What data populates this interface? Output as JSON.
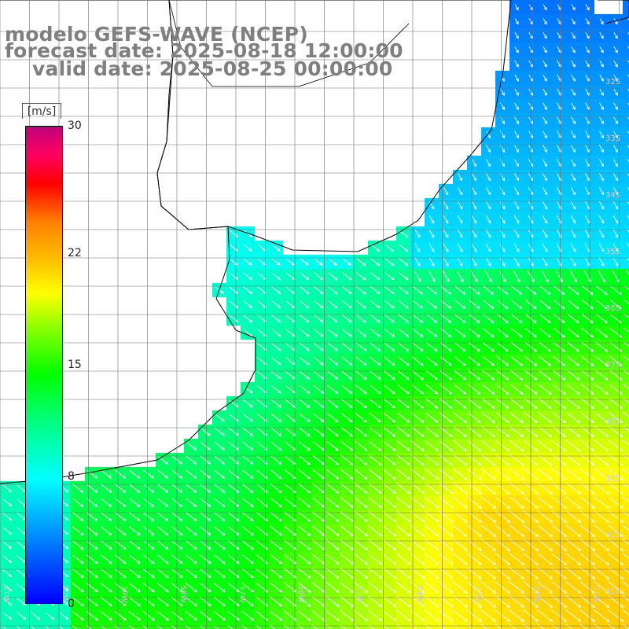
{
  "title": {
    "line1": "modelo GEFS-WAVE (NCEP)",
    "line2": "forecast date: 2025-08-18 12:00:00",
    "line3": "valid date: 2025-08-25 00:00:00"
  },
  "colorbar": {
    "unit": "[m/s]",
    "ticks": [
      {
        "value": 30,
        "label": "30"
      },
      {
        "value": 22,
        "label": "22"
      },
      {
        "value": 15,
        "label": "15"
      },
      {
        "value": 8,
        "label": "8"
      },
      {
        "value": 0,
        "label": "0"
      }
    ],
    "range": [
      0,
      30
    ]
  },
  "lat_labels": [
    {
      "value": -32,
      "label": "32S"
    },
    {
      "value": -33,
      "label": "33S"
    },
    {
      "value": -34,
      "label": "34S"
    },
    {
      "value": -35,
      "label": "35S"
    },
    {
      "value": -36,
      "label": "36S"
    },
    {
      "value": -37,
      "label": "37S"
    },
    {
      "value": -38,
      "label": "38S"
    },
    {
      "value": -39,
      "label": "39S"
    },
    {
      "value": -40,
      "label": "40S"
    },
    {
      "value": -41,
      "label": "41S"
    }
  ],
  "lon_labels": [
    {
      "value": -61,
      "label": "61W"
    },
    {
      "value": -60,
      "label": "60W"
    },
    {
      "value": -59,
      "label": "59W"
    },
    {
      "value": -58,
      "label": "58W"
    },
    {
      "value": -57,
      "label": "57W"
    },
    {
      "value": -56,
      "label": "56W"
    },
    {
      "value": -55,
      "label": "55W"
    },
    {
      "value": -54,
      "label": "54W"
    },
    {
      "value": -53,
      "label": "53W"
    },
    {
      "value": -52,
      "label": "52W"
    },
    {
      "value": -51,
      "label": "51W"
    }
  ],
  "colors": {
    "land": "#ffffff",
    "coastline": "#000000",
    "grid": "#6e6e6e",
    "vector": "#ffffff",
    "title": "#7f7f7f"
  },
  "wind_field": {
    "variable": "wind speed",
    "units": "m/s",
    "direction_summary": "flow from north-west toward south-east",
    "regions": [
      {
        "area": "north-east ocean",
        "speed_ms": 4
      },
      {
        "area": "near river estuary",
        "speed_ms": 8
      },
      {
        "area": "central shelf",
        "speed_ms": 12
      },
      {
        "area": "south-east ocean",
        "speed_ms": 18
      }
    ]
  }
}
